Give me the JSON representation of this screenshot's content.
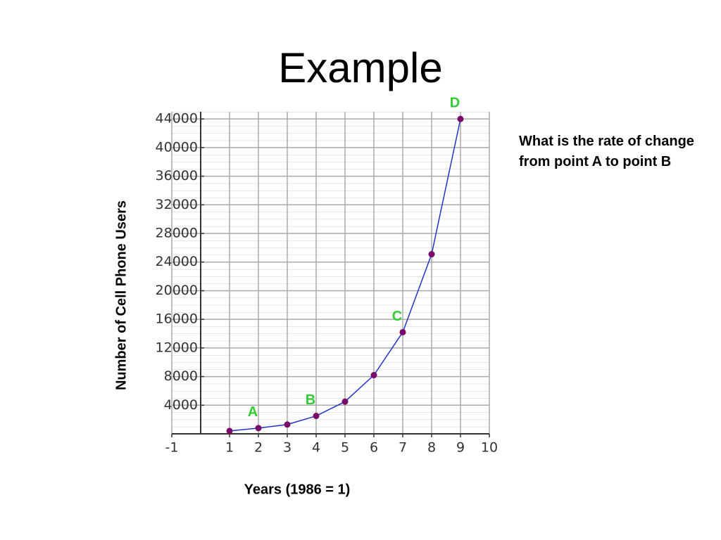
{
  "title": "Example",
  "question": "What is the rate of change from point A to point B",
  "chart_data": {
    "type": "line",
    "x_label": "Years (1986 = 1)",
    "y_label": "Number of Cell Phone Users",
    "x": [
      1,
      2,
      3,
      4,
      5,
      6,
      7,
      8,
      9
    ],
    "series": [
      {
        "name": "Cell phone users",
        "color": "#2233cc",
        "marker_color": "#7a0a6a",
        "values": [
          400,
          800,
          1300,
          2500,
          4500,
          8200,
          14200,
          25100,
          44000
        ]
      }
    ],
    "annotations": [
      {
        "text": "A",
        "x": 2
      },
      {
        "text": "B",
        "x": 4
      },
      {
        "text": "C",
        "x": 7
      },
      {
        "text": "D",
        "x": 9
      }
    ],
    "xlim": [
      -1,
      10
    ],
    "xticks": [
      -1,
      1,
      2,
      3,
      4,
      5,
      6,
      7,
      8,
      9,
      10
    ],
    "ylim": [
      0,
      45000
    ],
    "yticks": [
      4000,
      8000,
      12000,
      16000,
      20000,
      24000,
      28000,
      32000,
      36000,
      40000,
      44000
    ],
    "grid": true
  }
}
